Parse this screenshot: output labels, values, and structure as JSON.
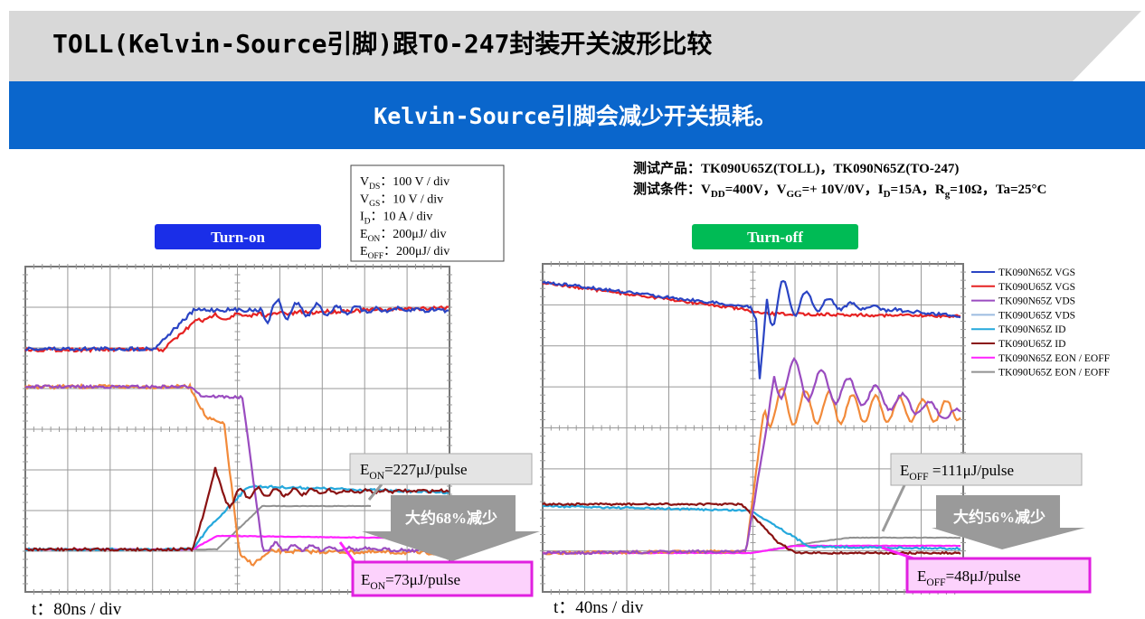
{
  "header": {
    "title": "TOLL(Kelvin-Source引脚)跟TO-247封装开关波形比较"
  },
  "banner": {
    "text": "Kelvin-Source引脚会减少开关损耗。"
  },
  "scale_box": {
    "lines": [
      {
        "symbol": "V",
        "subscript": "DS",
        "text": "：100 V / div"
      },
      {
        "symbol": "V",
        "subscript": "GS",
        "text": "：10 V / div"
      },
      {
        "symbol": "I",
        "subscript": "D",
        "text": "：10 A / div"
      },
      {
        "symbol": "E",
        "subscript": "ON",
        "text": "：200μJ/ div"
      },
      {
        "symbol": "E",
        "subscript": "OFF",
        "text": "：200μJ/ div"
      }
    ]
  },
  "test_info": {
    "product": "测试产品：TK090U65Z(TOLL)，TK090N65Z(TO-247)",
    "conditions": [
      {
        "text": "测试条件：V",
        "subscript": "DD"
      },
      {
        "text": "=400V，V",
        "subscript": "GG"
      },
      {
        "text": "=+ 10V/0V，I",
        "subscript": "D"
      },
      {
        "text": "=15A，R",
        "subscript": "g"
      },
      {
        "text": "=10Ω，Ta=25°C"
      }
    ]
  },
  "turn_on": {
    "label": "Turn-on",
    "time_scale": "t：80ns / div",
    "loss_high": {
      "symbol": "E",
      "subscript": "ON",
      "text": "=227μJ/pulse"
    },
    "reduction": "大约68%减少",
    "loss_low": {
      "symbol": "E",
      "subscript": "ON",
      "text": "=73μJ/pulse"
    }
  },
  "turn_off": {
    "label": "Turn-off",
    "time_scale": "t：40ns / div",
    "loss_high": {
      "symbol": "E",
      "subscript": "OFF",
      "text": " =111μJ/pulse"
    },
    "reduction": "大约56%减少",
    "loss_low": {
      "symbol": "E",
      "subscript": "OFF",
      "text": "=48μJ/pulse"
    }
  },
  "legend": [
    {
      "name": "TK090N65Z VGS",
      "color": "#2a44c4"
    },
    {
      "name": "TK090U65Z VGS",
      "color": "#e62222"
    },
    {
      "name": "TK090N65Z VDS",
      "color": "#9a4cc0"
    },
    {
      "name": "TK090U65Z VDS",
      "color": "#9cbce0"
    },
    {
      "name": "TK090N65Z ID",
      "color": "#25a8dc"
    },
    {
      "name": "TK090U65Z ID",
      "color": "#8a1212"
    },
    {
      "name": "TK090N65Z EON / EOFF",
      "color": "#ff22ff"
    },
    {
      "name": "TK090U65Z EON / EOFF",
      "color": "#909090"
    }
  ]
}
